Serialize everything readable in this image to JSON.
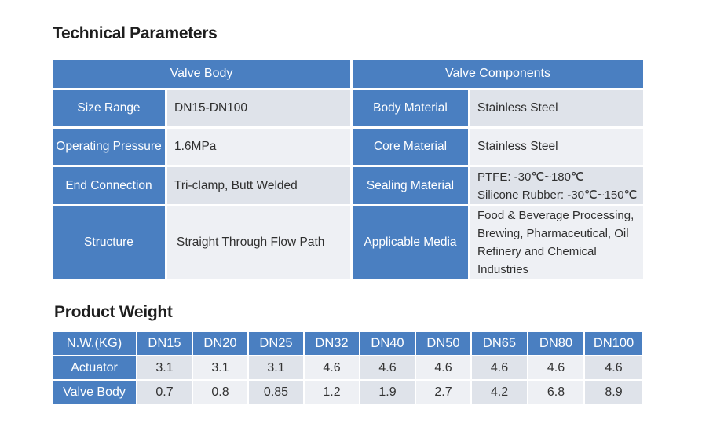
{
  "technical": {
    "title": "Technical Parameters",
    "header_left": "Valve Body",
    "header_right": "Valve Components",
    "rows": [
      {
        "label": "Size Range",
        "value": "DN15-DN100",
        "label2": "Body Material",
        "value2": "Stainless Steel"
      },
      {
        "label": "Operating Pressure",
        "value": "1.6MPa",
        "label2": "Core Material",
        "value2": "Stainless Steel"
      },
      {
        "label": "End Connection",
        "value": "Tri-clamp, Butt Welded",
        "label2": "Sealing Material",
        "value2_lines": [
          "PTFE:  -30℃~180℃",
          "Silicone Rubber: -30℃~150℃"
        ]
      },
      {
        "label": "Structure",
        "value": "Straight Through Flow Path",
        "label2": "Applicable Media",
        "value2_lines": [
          "Food & Beverage Processing,",
          "Brewing, Pharmaceutical, Oil",
          "Refinery and Chemical Industries"
        ]
      }
    ]
  },
  "weight": {
    "title": "Product Weight",
    "header": [
      "N.W.(KG)",
      "DN15",
      "DN20",
      "DN25",
      "DN32",
      "DN40",
      "DN50",
      "DN65",
      "DN80",
      "DN100"
    ],
    "rows": [
      {
        "label": "Actuator",
        "values": [
          "3.1",
          "3.1",
          "3.1",
          "4.6",
          "4.6",
          "4.6",
          "4.6",
          "4.6",
          "4.6"
        ]
      },
      {
        "label": "Valve Body",
        "values": [
          "0.7",
          "0.8",
          "0.85",
          "1.2",
          "1.9",
          "2.7",
          "4.2",
          "6.8",
          "8.9"
        ]
      }
    ]
  }
}
